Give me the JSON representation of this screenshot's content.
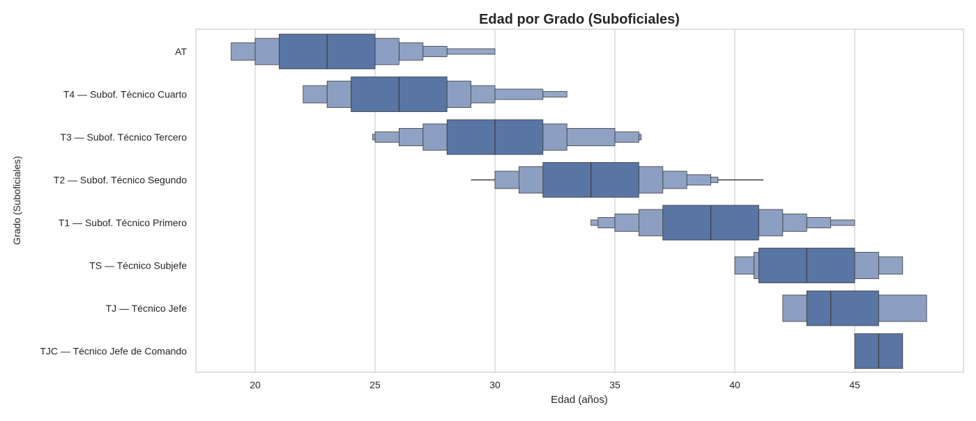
{
  "chart_data": {
    "type": "letter-value plot",
    "title": "Edad por Grado (Suboficiales)",
    "xlabel": "Edad (años)",
    "ylabel": "Grado (Suboficiales)",
    "xlim": [
      17.5,
      49.5
    ],
    "xticks": [
      20,
      25,
      30,
      35,
      40,
      45
    ],
    "grid": "vertical",
    "categories": [
      "AT",
      "T4 — Subof. Técnico Cuarto",
      "T3 — Subof. Técnico Tercero",
      "T2 — Subof. Técnico Segundo",
      "T1 — Subof. Técnico Primero",
      "TS — Técnico Subjefe",
      "TJ — Técnico Jefe",
      "TJC — Técnico Jefe de Comando"
    ],
    "series": [
      {
        "median": 23,
        "boxes": [
          [
            21,
            25
          ],
          [
            20,
            26
          ],
          [
            19,
            27
          ],
          [
            null,
            28
          ],
          [
            null,
            30
          ]
        ]
      },
      {
        "median": 26,
        "boxes": [
          [
            24,
            28
          ],
          [
            23,
            29
          ],
          [
            22,
            30
          ],
          [
            null,
            32
          ],
          [
            null,
            33
          ]
        ]
      },
      {
        "median": 30,
        "boxes": [
          [
            28,
            32
          ],
          [
            27,
            33
          ],
          [
            26,
            35
          ],
          [
            25,
            36
          ],
          [
            24.9,
            36.1
          ]
        ]
      },
      {
        "median": 34,
        "boxes": [
          [
            32,
            36
          ],
          [
            31,
            37
          ],
          [
            30,
            38
          ],
          [
            null,
            39
          ],
          [
            null,
            39.3
          ]
        ],
        "whisker": [
          29,
          41.2
        ]
      },
      {
        "median": 39,
        "boxes": [
          [
            37,
            41
          ],
          [
            36,
            42
          ],
          [
            35,
            43
          ],
          [
            34.3,
            44
          ],
          [
            34,
            45
          ]
        ]
      },
      {
        "median": 43,
        "boxes": [
          [
            41,
            45
          ],
          [
            40.8,
            46
          ],
          [
            40,
            47
          ]
        ]
      },
      {
        "median": 44,
        "boxes": [
          [
            43,
            46
          ],
          [
            42,
            48
          ]
        ]
      },
      {
        "median": 46,
        "boxes": [
          [
            45,
            47
          ]
        ]
      }
    ],
    "colors": {
      "box_inner": "#5875a4",
      "box_outer": "#8c9fc2",
      "edge": "#3a3a3a",
      "grid": "#d0d0d0",
      "frame": "#cccccc"
    }
  }
}
